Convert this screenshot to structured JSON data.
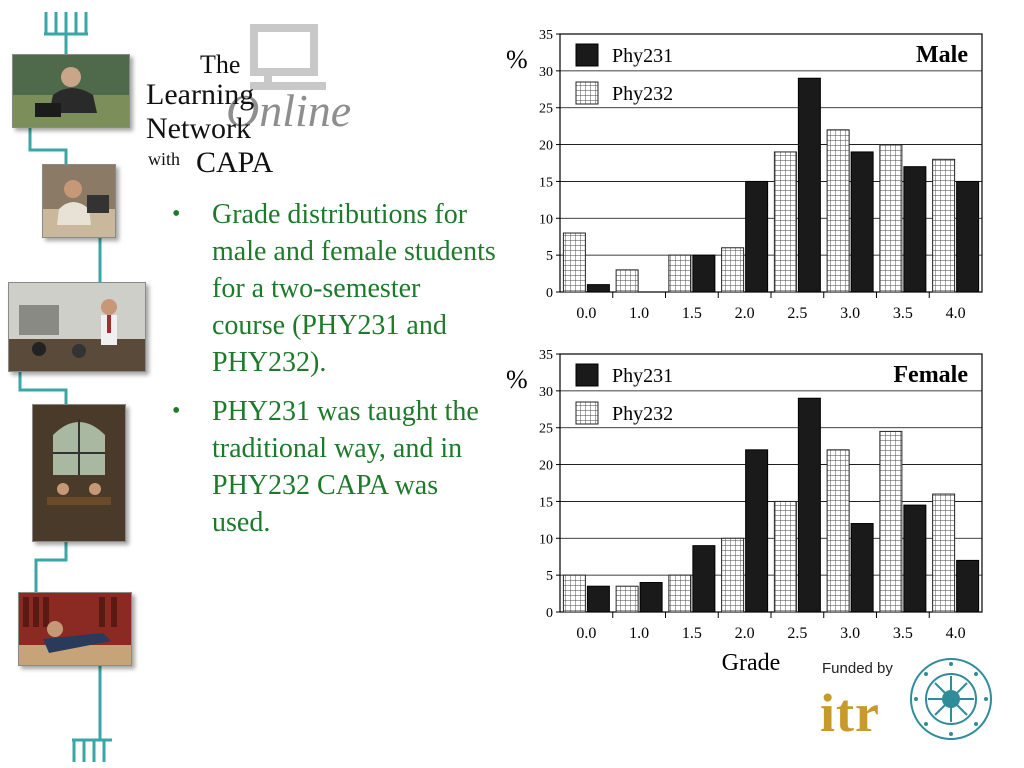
{
  "logo": {
    "the": "The",
    "learning": "Learning",
    "network": "Network",
    "with": "with",
    "capa": "CAPA",
    "online": "Online"
  },
  "bullets": [
    "Grade distributions for male and female students for a two-semester course (PHY231 and PHY232).",
    "PHY231 was taught the traditional way, and in PHY232 CAPA was used."
  ],
  "chart_data": [
    {
      "type": "bar",
      "title": "Male",
      "ylabel": "%",
      "xlabel": "",
      "categories": [
        "0.0",
        "1.0",
        "1.5",
        "2.0",
        "2.5",
        "3.0",
        "3.5",
        "4.0"
      ],
      "ylim": [
        0,
        35
      ],
      "yticks": [
        "0",
        "5",
        "10",
        "15",
        "20",
        "25",
        "30",
        "35"
      ],
      "grid": true,
      "legend": "top-left",
      "series": [
        {
          "name": "Phy231",
          "values": [
            1,
            0,
            5,
            15,
            29,
            19,
            17,
            15
          ],
          "color": "#1a1a1a"
        },
        {
          "name": "Phy232",
          "values": [
            8,
            3,
            5,
            6,
            19,
            22,
            20,
            18
          ],
          "color": "#ffffff"
        }
      ]
    },
    {
      "type": "bar",
      "title": "Female",
      "ylabel": "%",
      "xlabel": "Grade",
      "categories": [
        "0.0",
        "1.0",
        "1.5",
        "2.0",
        "2.5",
        "3.0",
        "3.5",
        "4.0"
      ],
      "ylim": [
        0,
        35
      ],
      "yticks": [
        "0",
        "5",
        "10",
        "15",
        "20",
        "25",
        "30",
        "35"
      ],
      "grid": true,
      "legend": "top-left",
      "series": [
        {
          "name": "Phy231",
          "values": [
            3.5,
            4,
            9,
            22,
            29,
            12,
            14.5,
            7
          ],
          "color": "#1a1a1a"
        },
        {
          "name": "Phy232",
          "values": [
            5,
            3.5,
            5,
            10,
            15,
            22,
            24.5,
            16
          ],
          "color": "#ffffff"
        }
      ]
    }
  ],
  "funding": {
    "text": "Funded by",
    "program": "itr",
    "seal_icon": "nsf-seal-icon"
  },
  "colors": {
    "bullet_text": "#1d7a2a",
    "rail": "#3aa6a6",
    "itr": "#c89a2a",
    "seal": "#2f8c9a"
  }
}
